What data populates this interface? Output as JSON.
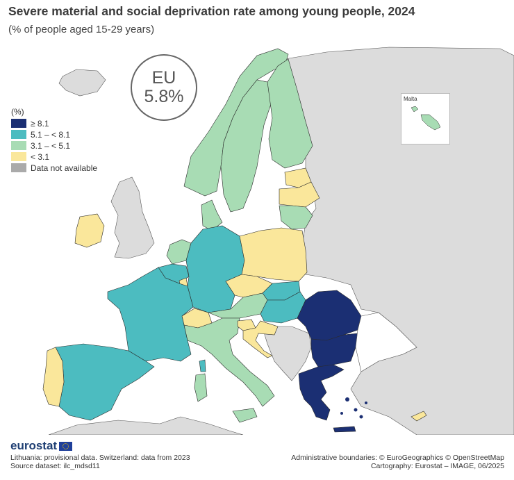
{
  "title": "Severe material and social deprivation rate among young people, 2024",
  "subtitle": "(% of people aged 15-29 years)",
  "eu_badge": {
    "label": "EU",
    "value": "5.8%"
  },
  "legend": {
    "title": "(%)",
    "items": [
      {
        "label": "≥ 8.1",
        "color": "#1b2f73"
      },
      {
        "label": "5.1 – < 8.1",
        "color": "#4cbcc0"
      },
      {
        "label": "3.1 – < 5.1",
        "color": "#a8dcb4"
      },
      {
        "label": "< 3.1",
        "color": "#fae79b"
      },
      {
        "label": "Data not available",
        "color": "#aaaaaa"
      }
    ]
  },
  "inset": {
    "label": "Malta"
  },
  "colors": {
    "sea": "#ffffff",
    "non_eu": "#dcdcdc",
    "border": "#2a2a2a"
  },
  "regions": [
    {
      "name": "Iceland",
      "class": "n/a"
    },
    {
      "name": "Norway",
      "class": "3.1 – < 5.1"
    },
    {
      "name": "Sweden",
      "class": "3.1 – < 5.1"
    },
    {
      "name": "Finland",
      "class": "3.1 – < 5.1"
    },
    {
      "name": "Estonia",
      "class": "< 3.1"
    },
    {
      "name": "Latvia",
      "class": "< 3.1"
    },
    {
      "name": "Lithuania",
      "class": "3.1 – < 5.1"
    },
    {
      "name": "Denmark",
      "class": "3.1 – < 5.1"
    },
    {
      "name": "Ireland",
      "class": "< 3.1"
    },
    {
      "name": "United Kingdom",
      "class": "n/a"
    },
    {
      "name": "Netherlands",
      "class": "3.1 – < 5.1"
    },
    {
      "name": "Belgium",
      "class": "5.1 – < 8.1"
    },
    {
      "name": "Luxembourg",
      "class": "< 3.1"
    },
    {
      "name": "Germany",
      "class": "5.1 – < 8.1"
    },
    {
      "name": "Poland",
      "class": "< 3.1"
    },
    {
      "name": "Czechia",
      "class": "< 3.1"
    },
    {
      "name": "Slovakia",
      "class": "5.1 – < 8.1"
    },
    {
      "name": "Austria",
      "class": "3.1 – < 5.1"
    },
    {
      "name": "Switzerland",
      "class": "< 3.1"
    },
    {
      "name": "France",
      "class": "5.1 – < 8.1"
    },
    {
      "name": "Spain",
      "class": "5.1 – < 8.1"
    },
    {
      "name": "Portugal",
      "class": "< 3.1"
    },
    {
      "name": "Italy",
      "class": "3.1 – < 5.1"
    },
    {
      "name": "Slovenia",
      "class": "< 3.1"
    },
    {
      "name": "Croatia",
      "class": "< 3.1"
    },
    {
      "name": "Hungary",
      "class": "5.1 – < 8.1"
    },
    {
      "name": "Romania",
      "class": "≥ 8.1"
    },
    {
      "name": "Bulgaria",
      "class": "≥ 8.1"
    },
    {
      "name": "Greece",
      "class": "≥ 8.1"
    },
    {
      "name": "Cyprus",
      "class": "< 3.1"
    },
    {
      "name": "Malta",
      "class": "3.1 – < 5.1"
    }
  ],
  "footer": {
    "logo": "eurostat",
    "note1": "Lithuania: provisional data. Switzerland: data from 2023",
    "note2": "Source dataset: ilc_mdsd11",
    "credit1": "Administrative boundaries: © EuroGeographics © OpenStreetMap",
    "credit2": "Cartography: Eurostat – IMAGE, 06/2025"
  }
}
